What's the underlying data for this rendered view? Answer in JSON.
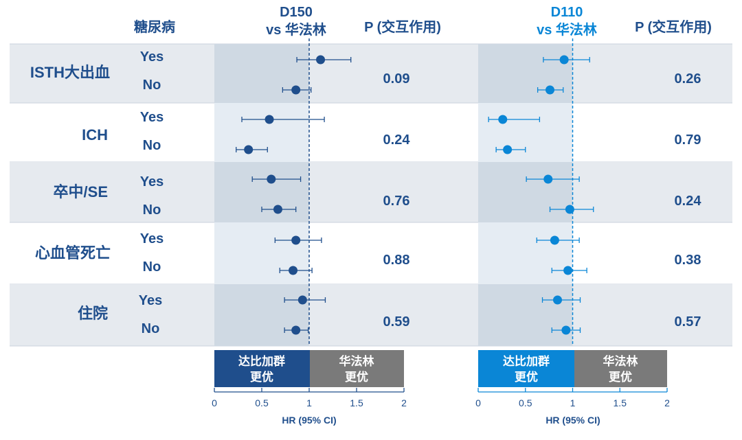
{
  "header": {
    "subgroup_label": "糖尿病",
    "p_label": "P (交互作用)"
  },
  "rows": [
    {
      "outcome": "ISTH大出血",
      "levels": [
        "Yes",
        "No"
      ]
    },
    {
      "outcome": "ICH",
      "levels": [
        "Yes",
        "No"
      ]
    },
    {
      "outcome": "卒中/SE",
      "levels": [
        "Yes",
        "No"
      ]
    },
    {
      "outcome": "心血管死亡",
      "levels": [
        "Yes",
        "No"
      ]
    },
    {
      "outcome": "住院",
      "levels": [
        "Yes",
        "No"
      ]
    }
  ],
  "colors": {
    "dark_blue": "#1f4e8c",
    "light_blue": "#0a86d6",
    "band_grey": "#e6eaef",
    "shade_left": "#cfd9e3",
    "shade_left_white": "#e5ecf3",
    "grey_box": "#7a7a7a"
  },
  "chart_data": [
    {
      "type": "forest",
      "title_line1": "D150",
      "title_line2": "vs 华法林",
      "xlabel": "HR (95% CI)",
      "xlim": [
        0,
        2
      ],
      "ticks": [
        "0",
        "0.5",
        "1",
        "1.5",
        "2"
      ],
      "reference_line": 1,
      "favor_left": [
        "达比加群",
        "更优"
      ],
      "favor_right": [
        "华法林",
        "更优"
      ],
      "series": [
        {
          "outcome": "ISTH大出血",
          "level": "Yes",
          "hr": 1.12,
          "ci": [
            0.87,
            1.44
          ]
        },
        {
          "outcome": "ISTH大出血",
          "level": "No",
          "hr": 0.86,
          "ci": [
            0.72,
            1.02
          ]
        },
        {
          "outcome": "ICH",
          "level": "Yes",
          "hr": 0.58,
          "ci": [
            0.29,
            1.16
          ]
        },
        {
          "outcome": "ICH",
          "level": "No",
          "hr": 0.36,
          "ci": [
            0.23,
            0.56
          ]
        },
        {
          "outcome": "卒中/SE",
          "level": "Yes",
          "hr": 0.6,
          "ci": [
            0.4,
            0.91
          ]
        },
        {
          "outcome": "卒中/SE",
          "level": "No",
          "hr": 0.67,
          "ci": [
            0.5,
            0.86
          ]
        },
        {
          "outcome": "心血管死亡",
          "level": "Yes",
          "hr": 0.86,
          "ci": [
            0.64,
            1.13
          ]
        },
        {
          "outcome": "心血管死亡",
          "level": "No",
          "hr": 0.83,
          "ci": [
            0.69,
            1.03
          ]
        },
        {
          "outcome": "住院",
          "level": "Yes",
          "hr": 0.93,
          "ci": [
            0.74,
            1.17
          ]
        },
        {
          "outcome": "住院",
          "level": "No",
          "hr": 0.86,
          "ci": [
            0.74,
            0.99
          ]
        }
      ],
      "p_interaction": [
        "0.09",
        "0.24",
        "0.76",
        "0.88",
        "0.59"
      ]
    },
    {
      "type": "forest",
      "title_line1": "D110",
      "title_line2": "vs 华法林",
      "xlabel": "HR (95% CI)",
      "xlim": [
        0,
        2
      ],
      "ticks": [
        "0",
        "0.5",
        "1",
        "1.5",
        "2"
      ],
      "reference_line": 1,
      "favor_left": [
        "达比加群",
        "更优"
      ],
      "favor_right": [
        "华法林",
        "更优"
      ],
      "series": [
        {
          "outcome": "ISTH大出血",
          "level": "Yes",
          "hr": 0.91,
          "ci": [
            0.69,
            1.18
          ]
        },
        {
          "outcome": "ISTH大出血",
          "level": "No",
          "hr": 0.76,
          "ci": [
            0.63,
            0.9
          ]
        },
        {
          "outcome": "ICH",
          "level": "Yes",
          "hr": 0.26,
          "ci": [
            0.11,
            0.65
          ]
        },
        {
          "outcome": "ICH",
          "level": "No",
          "hr": 0.31,
          "ci": [
            0.19,
            0.5
          ]
        },
        {
          "outcome": "卒中/SE",
          "level": "Yes",
          "hr": 0.74,
          "ci": [
            0.51,
            1.07
          ]
        },
        {
          "outcome": "卒中/SE",
          "level": "No",
          "hr": 0.97,
          "ci": [
            0.76,
            1.22
          ]
        },
        {
          "outcome": "心血管死亡",
          "level": "Yes",
          "hr": 0.81,
          "ci": [
            0.62,
            1.07
          ]
        },
        {
          "outcome": "心血管死亡",
          "level": "No",
          "hr": 0.95,
          "ci": [
            0.78,
            1.15
          ]
        },
        {
          "outcome": "住院",
          "level": "Yes",
          "hr": 0.84,
          "ci": [
            0.68,
            1.08
          ]
        },
        {
          "outcome": "住院",
          "level": "No",
          "hr": 0.93,
          "ci": [
            0.78,
            1.08
          ]
        }
      ],
      "p_interaction": [
        "0.26",
        "0.79",
        "0.24",
        "0.38",
        "0.57"
      ]
    }
  ]
}
